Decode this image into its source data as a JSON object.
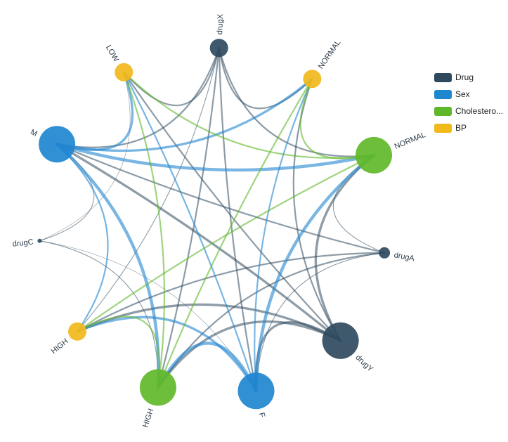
{
  "colors": {
    "Drug": "#2f4a5e",
    "Sex": "#1f86d0",
    "Cholesterol": "#5fb82a",
    "BP": "#f2b91c"
  },
  "legend": [
    {
      "label": "Drug",
      "group": "Drug"
    },
    {
      "label": "Sex",
      "group": "Sex"
    },
    {
      "label": "Cholestero...",
      "group": "Cholesterol"
    },
    {
      "label": "BP",
      "group": "BP"
    }
  ],
  "chart_data": {
    "type": "chord-network",
    "nodes": [
      {
        "id": "drugX",
        "label": "drugX",
        "group": "Drug",
        "size": 2
      },
      {
        "id": "bp_normal",
        "label": "NORMAL",
        "group": "BP",
        "size": 2
      },
      {
        "id": "chol_normal",
        "label": "NORMAL",
        "group": "Cholesterol",
        "size": 4
      },
      {
        "id": "drugA",
        "label": "drugA",
        "group": "Drug",
        "size": 1
      },
      {
        "id": "drugY",
        "label": "drugY",
        "group": "Drug",
        "size": 4
      },
      {
        "id": "F",
        "label": "F",
        "group": "Sex",
        "size": 4
      },
      {
        "id": "chol_high",
        "label": "HIGH",
        "group": "Cholesterol",
        "size": 4
      },
      {
        "id": "bp_high",
        "label": "HIGH",
        "group": "BP",
        "size": 2
      },
      {
        "id": "drugC",
        "label": "drugC",
        "group": "Drug",
        "size": 0
      },
      {
        "id": "M",
        "label": "M",
        "group": "Sex",
        "size": 4
      },
      {
        "id": "bp_low",
        "label": "LOW",
        "group": "BP",
        "size": 2
      }
    ],
    "links": [
      {
        "source": "drugX",
        "target": "bp_low",
        "weight": 2
      },
      {
        "source": "drugX",
        "target": "bp_normal",
        "weight": 2
      },
      {
        "source": "drugX",
        "target": "chol_normal",
        "weight": 2
      },
      {
        "source": "drugX",
        "target": "chol_high",
        "weight": 2
      },
      {
        "source": "drugX",
        "target": "M",
        "weight": 2
      },
      {
        "source": "drugX",
        "target": "F",
        "weight": 2
      },
      {
        "source": "drugX",
        "target": "bp_high",
        "weight": 1
      },
      {
        "source": "drugA",
        "target": "bp_high",
        "weight": 2
      },
      {
        "source": "drugA",
        "target": "chol_normal",
        "weight": 1
      },
      {
        "source": "drugA",
        "target": "chol_high",
        "weight": 2
      },
      {
        "source": "drugA",
        "target": "M",
        "weight": 2
      },
      {
        "source": "drugA",
        "target": "F",
        "weight": 1
      },
      {
        "source": "drugY",
        "target": "bp_low",
        "weight": 2
      },
      {
        "source": "drugY",
        "target": "bp_normal",
        "weight": 2
      },
      {
        "source": "drugY",
        "target": "bp_high",
        "weight": 3
      },
      {
        "source": "drugY",
        "target": "chol_normal",
        "weight": 3
      },
      {
        "source": "drugY",
        "target": "chol_high",
        "weight": 3
      },
      {
        "source": "drugY",
        "target": "M",
        "weight": 3
      },
      {
        "source": "drugY",
        "target": "F",
        "weight": 3
      },
      {
        "source": "drugC",
        "target": "M",
        "weight": 1
      },
      {
        "source": "drugC",
        "target": "F",
        "weight": 0.5
      },
      {
        "source": "drugC",
        "target": "chol_high",
        "weight": 1
      },
      {
        "source": "drugC",
        "target": "bp_low",
        "weight": 0.5
      },
      {
        "source": "M",
        "target": "bp_low",
        "weight": 3
      },
      {
        "source": "M",
        "target": "bp_normal",
        "weight": 3
      },
      {
        "source": "M",
        "target": "chol_normal",
        "weight": 4
      },
      {
        "source": "M",
        "target": "chol_high",
        "weight": 4
      },
      {
        "source": "M",
        "target": "bp_high",
        "weight": 2
      },
      {
        "source": "F",
        "target": "bp_low",
        "weight": 2
      },
      {
        "source": "F",
        "target": "bp_normal",
        "weight": 2
      },
      {
        "source": "F",
        "target": "chol_normal",
        "weight": 4
      },
      {
        "source": "F",
        "target": "chol_high",
        "weight": 4
      },
      {
        "source": "F",
        "target": "bp_high",
        "weight": 3
      },
      {
        "source": "chol_normal",
        "target": "bp_low",
        "weight": 2
      },
      {
        "source": "chol_normal",
        "target": "bp_high",
        "weight": 2
      },
      {
        "source": "chol_normal",
        "target": "bp_normal",
        "weight": 2
      },
      {
        "source": "chol_high",
        "target": "bp_low",
        "weight": 2
      },
      {
        "source": "chol_high",
        "target": "bp_normal",
        "weight": 2
      },
      {
        "source": "chol_high",
        "target": "bp_high",
        "weight": 2
      }
    ]
  }
}
